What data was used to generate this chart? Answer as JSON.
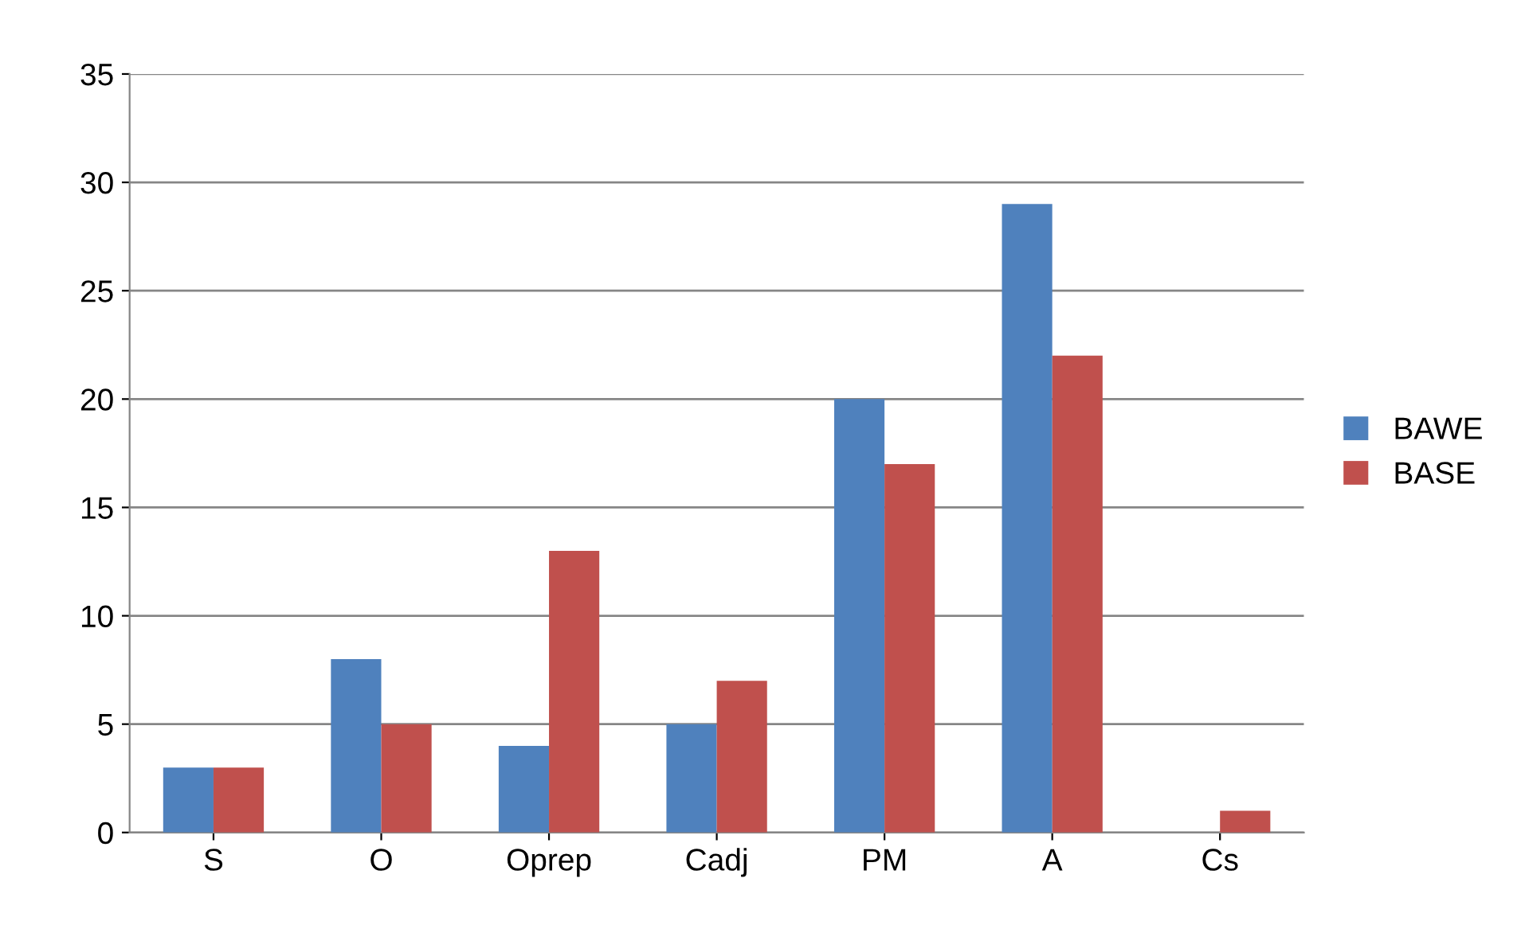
{
  "chart_data": {
    "type": "bar",
    "categories": [
      "S",
      "O",
      "Oprep",
      "Cadj",
      "PM",
      "A",
      "Cs"
    ],
    "series": [
      {
        "name": "BAWE",
        "color": "#4f81bd",
        "values": [
          3,
          8,
          4,
          5,
          20,
          29,
          0
        ]
      },
      {
        "name": "BASE",
        "color": "#c0504d",
        "values": [
          3,
          5,
          13,
          7,
          17,
          22,
          1
        ]
      }
    ],
    "ylim": [
      0,
      35
    ],
    "yticks": [
      0,
      5,
      10,
      15,
      20,
      25,
      30,
      35
    ],
    "grid": "y",
    "legend": "right"
  }
}
